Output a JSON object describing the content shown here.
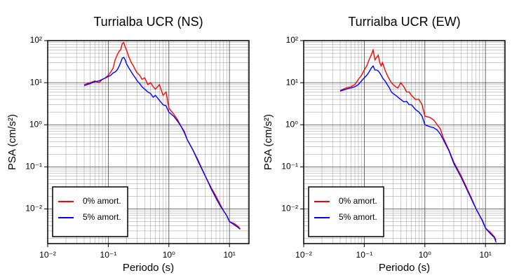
{
  "chart_data": [
    {
      "type": "line",
      "title": "Turrialba UCR (NS)",
      "x_label": "Periodo (s)",
      "y_label": "PSA (cm/s²)",
      "log_x": true,
      "log_y": true,
      "grid": true,
      "legend": "lower left",
      "xlim": [
        0.01,
        21
      ],
      "ylim": [
        0.0015,
        100
      ],
      "xticks": [
        {
          "value": 0.01,
          "label": "10⁻²"
        },
        {
          "value": 0.1,
          "label": "10⁻¹"
        },
        {
          "value": 1,
          "label": "10⁰"
        },
        {
          "value": 10,
          "label": "10¹"
        }
      ],
      "yticks": [
        {
          "value": 0.01,
          "label": "10⁻²"
        },
        {
          "value": 0.1,
          "label": "10⁻¹"
        },
        {
          "value": 1,
          "label": "10⁰"
        },
        {
          "value": 10,
          "label": "10¹"
        },
        {
          "value": 100,
          "label": "10²"
        }
      ],
      "x": [
        0.04,
        0.05,
        0.06,
        0.07,
        0.08,
        0.09,
        0.1,
        0.11,
        0.12,
        0.13,
        0.14,
        0.15,
        0.16,
        0.17,
        0.18,
        0.19,
        0.2,
        0.22,
        0.24,
        0.26,
        0.28,
        0.3,
        0.33,
        0.36,
        0.4,
        0.45,
        0.5,
        0.55,
        0.6,
        0.7,
        0.8,
        0.9,
        1.0,
        1.2,
        1.4,
        1.6,
        1.8,
        2.0,
        2.5,
        3,
        4,
        5,
        6,
        7,
        8,
        9,
        10,
        12,
        14,
        15
      ],
      "series": [
        {
          "name": "0% amort.",
          "color": "#ff0000",
          "values": [
            9,
            10,
            11,
            10,
            12,
            13,
            15,
            18,
            22,
            35,
            45,
            55,
            60,
            85,
            90,
            70,
            60,
            40,
            30,
            25,
            20,
            17,
            15,
            12,
            13,
            9,
            10,
            8,
            7,
            9,
            5,
            6,
            2.5,
            1.8,
            1.3,
            0.9,
            0.7,
            0.45,
            0.25,
            0.15,
            0.06,
            0.032,
            0.02,
            0.013,
            0.009,
            0.007,
            0.005,
            0.0045,
            0.0038,
            0.0033
          ]
        },
        {
          "name": "5% amort.",
          "color": "#0000ff",
          "values": [
            8.5,
            9.5,
            10.5,
            11,
            12,
            13,
            14,
            15,
            17,
            18,
            20,
            24,
            30,
            38,
            40,
            35,
            28,
            22,
            18,
            15,
            13,
            11,
            9.5,
            8,
            7,
            6,
            5.5,
            4.5,
            5,
            3.8,
            3,
            2.8,
            2,
            1.6,
            1.2,
            0.9,
            0.65,
            0.45,
            0.25,
            0.14,
            0.06,
            0.03,
            0.018,
            0.012,
            0.009,
            0.007,
            0.005,
            0.0042,
            0.0036,
            0.0033
          ]
        }
      ]
    },
    {
      "type": "line",
      "title": "Turrialba UCR (EW)",
      "x_label": "Periodo (s)",
      "y_label": "PSA (cm/s²)",
      "log_x": true,
      "log_y": true,
      "grid": true,
      "legend": "lower left",
      "xlim": [
        0.01,
        21
      ],
      "ylim": [
        0.0015,
        100
      ],
      "xticks": [
        {
          "value": 0.01,
          "label": "10⁻²"
        },
        {
          "value": 0.1,
          "label": "10⁻¹"
        },
        {
          "value": 1,
          "label": "10⁰"
        },
        {
          "value": 10,
          "label": "10¹"
        }
      ],
      "yticks": [
        {
          "value": 0.01,
          "label": "10⁻²"
        },
        {
          "value": 0.1,
          "label": "10⁻¹"
        },
        {
          "value": 1,
          "label": "10⁰"
        },
        {
          "value": 10,
          "label": "10¹"
        },
        {
          "value": 100,
          "label": "10²"
        }
      ],
      "x": [
        0.04,
        0.05,
        0.06,
        0.07,
        0.08,
        0.09,
        0.1,
        0.11,
        0.12,
        0.13,
        0.14,
        0.15,
        0.16,
        0.17,
        0.18,
        0.19,
        0.2,
        0.22,
        0.24,
        0.26,
        0.28,
        0.3,
        0.33,
        0.36,
        0.4,
        0.45,
        0.5,
        0.55,
        0.6,
        0.7,
        0.8,
        0.9,
        1.0,
        1.2,
        1.4,
        1.6,
        1.8,
        2.0,
        2.5,
        3,
        4,
        5,
        6,
        7,
        8,
        9,
        10,
        12,
        14,
        15
      ],
      "series": [
        {
          "name": "0% amort.",
          "color": "#ff0000",
          "values": [
            6.5,
            7.5,
            8,
            9,
            12,
            15,
            20,
            25,
            35,
            45,
            60,
            35,
            40,
            45,
            30,
            25,
            30,
            20,
            15,
            12,
            10,
            9,
            8,
            7.5,
            10,
            8,
            6,
            6,
            5,
            4,
            4,
            3,
            1.6,
            1.5,
            1.3,
            1.0,
            0.8,
            0.5,
            0.25,
            0.13,
            0.06,
            0.03,
            0.017,
            0.01,
            0.007,
            0.005,
            0.0035,
            0.0028,
            0.0022,
            0.0018
          ]
        },
        {
          "name": "5% amort.",
          "color": "#0000ff",
          "values": [
            6.3,
            7,
            7.5,
            8,
            9,
            11,
            13,
            15,
            18,
            22,
            25,
            20,
            20,
            19,
            17,
            15,
            13,
            11,
            9,
            7.5,
            6,
            5.5,
            5,
            4.5,
            4,
            3.5,
            3.6,
            3,
            3.0,
            2.3,
            2.0,
            1.6,
            1.0,
            0.9,
            0.85,
            0.75,
            0.6,
            0.45,
            0.24,
            0.12,
            0.055,
            0.028,
            0.016,
            0.01,
            0.007,
            0.0052,
            0.0035,
            0.0026,
            0.0021,
            0.0016
          ]
        }
      ]
    }
  ]
}
